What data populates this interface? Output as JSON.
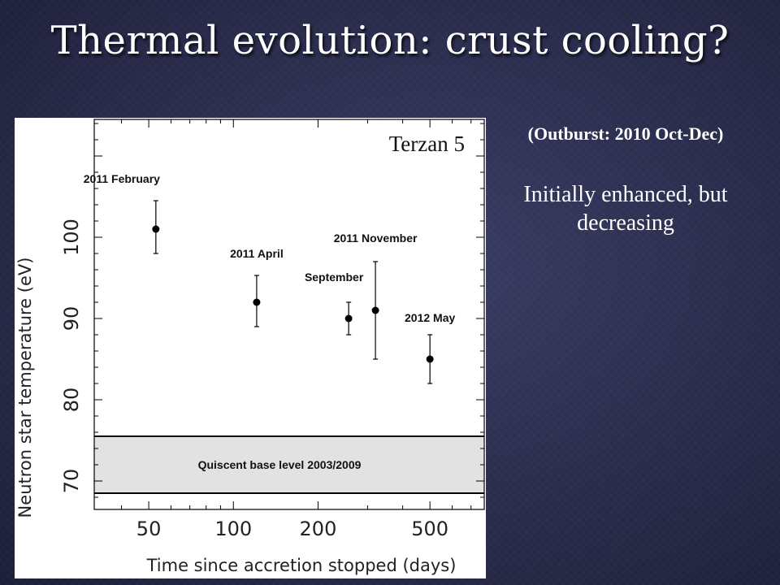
{
  "slide": {
    "title": "Thermal evolution: crust cooling?",
    "note_outburst": "(Outburst: 2010 Oct-Dec)",
    "note_description": "Initially enhanced, but decreasing"
  },
  "chart_data": {
    "type": "scatter",
    "title": "Terzan 5",
    "xlabel": "Time since accretion stopped (days)",
    "ylabel": "Neutron star temperature (eV)",
    "x_scale": "log",
    "xlim": [
      32,
      780
    ],
    "ylim": [
      66.5,
      114.5
    ],
    "x_ticks": [
      50,
      100,
      200,
      500
    ],
    "y_ticks": [
      70,
      80,
      90,
      100
    ],
    "points": [
      {
        "label": "2011 February",
        "x": 53,
        "y": 101,
        "y_err_low": 98,
        "y_err_high": 104.5
      },
      {
        "label": "2011 April",
        "x": 121,
        "y": 92,
        "y_err_low": 89,
        "y_err_high": 95.3
      },
      {
        "label": "September",
        "x": 257,
        "y": 90,
        "y_err_low": 88,
        "y_err_high": 92
      },
      {
        "label": "2011 November",
        "x": 320,
        "y": 91,
        "y_err_low": 85,
        "y_err_high": 97
      },
      {
        "label": "2012 May",
        "x": 500,
        "y": 85,
        "y_err_low": 82,
        "y_err_high": 88
      }
    ],
    "band": {
      "label": "Quiscent base level 2003/2009",
      "y_low": 68.5,
      "y_high": 75.5
    },
    "grid": false,
    "legend": "none"
  }
}
